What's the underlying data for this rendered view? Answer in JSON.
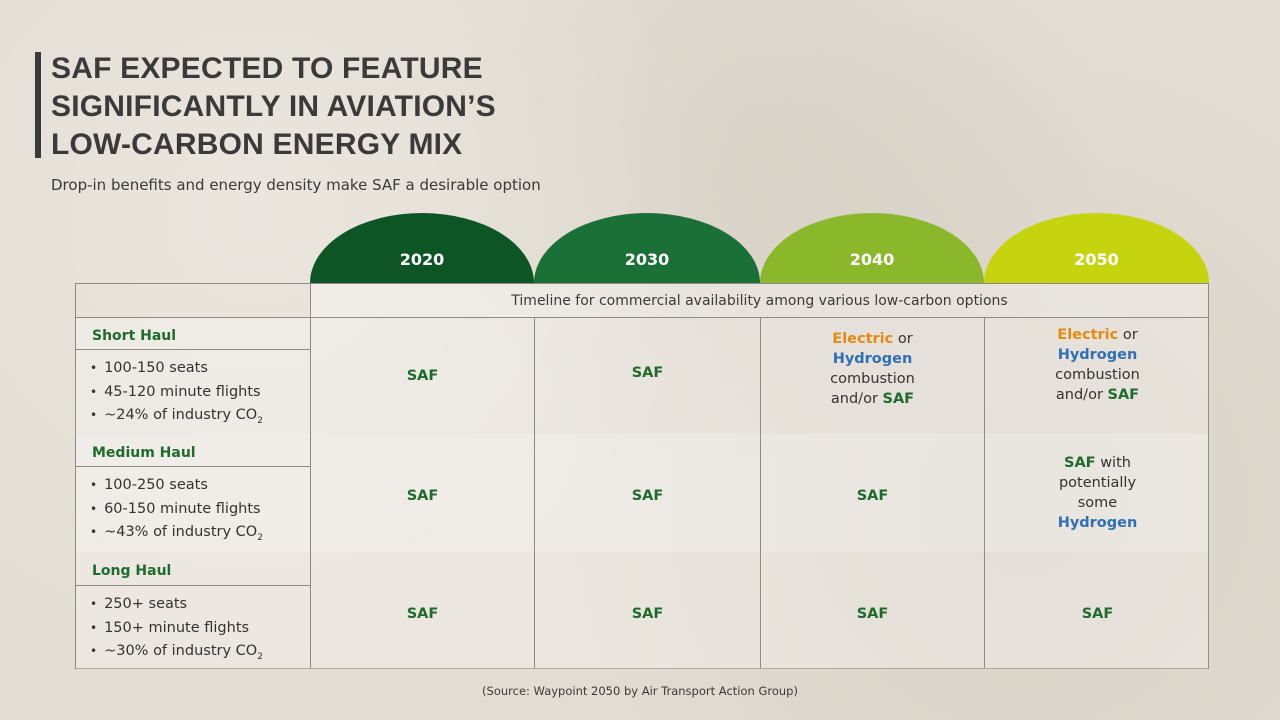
{
  "title": "SAF EXPECTED TO FEATURE\nSIGNIFICANTLY IN AVIATION’S\nLOW-CARBON ENERGY MIX",
  "subtitle": "Drop-in benefits and energy density make SAF a desirable option",
  "years": [
    {
      "label": "2020",
      "color": "#0e5526"
    },
    {
      "label": "2030",
      "color": "#1b7038"
    },
    {
      "label": "2040",
      "color": "#8bb82a"
    },
    {
      "label": "2050",
      "color": "#c5d40f"
    }
  ],
  "timeline_header": "Timeline for commercial availability among various low-carbon options",
  "rows": [
    {
      "category": "Short Haul",
      "bullets": [
        "100-150 seats",
        "45-120 minute flights",
        "~24% of industry CO",
        "2"
      ],
      "cells": {
        "y2020": "SAF",
        "y2030": "SAF",
        "y2040": {
          "electric": "Electric",
          "or": " or",
          "hydrogen": "Hydrogen",
          "combustion": "combustion",
          "andor": "and/or ",
          "saf": "SAF"
        },
        "y2050": {
          "electric": "Electric",
          "or": " or",
          "hydrogen": "Hydrogen",
          "combustion": "combustion",
          "andor": "and/or ",
          "saf": "SAF"
        }
      }
    },
    {
      "category": "Medium Haul",
      "bullets": [
        "100-250 seats",
        "60-150 minute flights",
        "~43% of industry CO",
        "2"
      ],
      "cells": {
        "y2020": "SAF",
        "y2030": "SAF",
        "y2040": "SAF",
        "y2050": {
          "saf": "SAF",
          "with": " with",
          "potentially": "potentially",
          "some": "some",
          "hydrogen": "Hydrogen"
        }
      }
    },
    {
      "category": "Long Haul",
      "bullets": [
        "250+ seats",
        "150+ minute flights",
        "~30% of industry CO",
        "2"
      ],
      "cells": {
        "y2020": "SAF",
        "y2030": "SAF",
        "y2040": "SAF",
        "y2050": "SAF"
      }
    }
  ],
  "source": "(Source: Waypoint 2050 by Air Transport Action Group)"
}
